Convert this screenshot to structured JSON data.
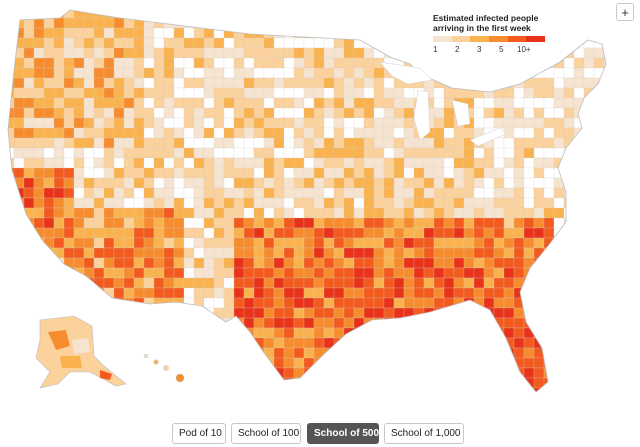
{
  "legend": {
    "title_line1": "Estimated infected people",
    "title_line2": "arriving in the first week",
    "ticks": [
      "1",
      "2",
      "3",
      "5",
      "10+"
    ],
    "colors": [
      "#f6e4d0",
      "#fbd19c",
      "#f9b24e",
      "#f78c2e",
      "#f25a1e",
      "#e8321a"
    ]
  },
  "zoom": {
    "label": "+"
  },
  "scenarios": {
    "buttons": [
      {
        "label": "Pod of 10",
        "selected": false
      },
      {
        "label": "School of 100",
        "selected": false
      },
      {
        "label": "School of 500",
        "selected": true
      },
      {
        "label": "School of 1,000",
        "selected": false
      }
    ]
  },
  "map_colors": {
    "background": "#ffffff",
    "none": "#ffffff",
    "very_low": "#f6e4d0",
    "low": "#fbd19c",
    "mid": "#f9b24e",
    "high": "#f78c2e",
    "very_high": "#f25a1e",
    "max": "#e8321a",
    "border": "#d0d0d0"
  }
}
